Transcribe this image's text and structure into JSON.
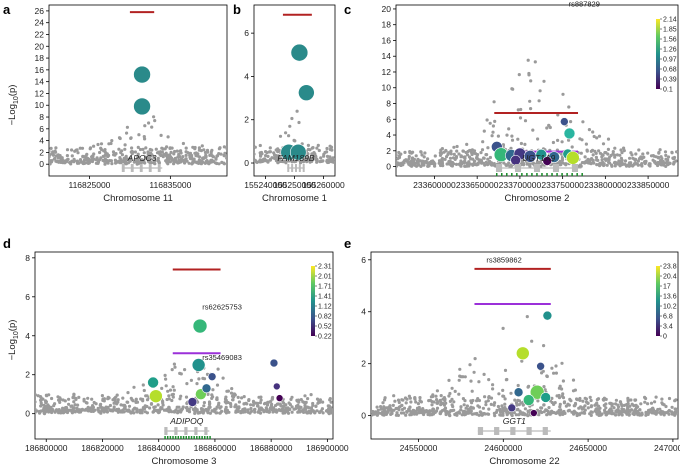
{
  "figure": {
    "ylabel_text": "−Log",
    "ylabel_sub": "10",
    "ylabel_tail": "(p)"
  },
  "chart_data": [
    {
      "type": "scatter",
      "panel": "a",
      "xlabel": "Chromosome 11",
      "xlim": [
        116820000,
        116842000
      ],
      "ylim": [
        -2,
        27
      ],
      "xticks": [
        116825000,
        116835000
      ],
      "xtick_labels": [
        "116825000",
        "116835000"
      ],
      "yticks": [
        0,
        2,
        4,
        6,
        8,
        10,
        12,
        14,
        16,
        18,
        20,
        22,
        24,
        26
      ],
      "ytick_labels": [
        "0",
        "2",
        "4",
        "6",
        "8",
        "10",
        "12",
        "14",
        "16",
        "18",
        "20",
        "22",
        "24",
        "26"
      ],
      "threshold_lines": [
        {
          "y": 25.8,
          "x0": 116830000,
          "x1": 116833000,
          "color": "#b22222"
        }
      ],
      "highlighted_variants": [
        {
          "x": 116831500,
          "y": 15.2,
          "size": 15,
          "color": "#2a8a8a"
        },
        {
          "x": 116831500,
          "y": 9.8,
          "size": 15,
          "color": "#2a8a8a"
        }
      ],
      "colorbar": null,
      "genes": [
        {
          "name": "APOC3",
          "start": 116829000,
          "end": 116834000
        }
      ],
      "annotations": []
    },
    {
      "type": "scatter",
      "panel": "b",
      "xlabel": "Chromosome 1",
      "xlim": [
        155236000,
        155264000
      ],
      "ylim": [
        -0.6,
        7.3
      ],
      "xticks": [
        155240000,
        155250000,
        155260000
      ],
      "xtick_labels": [
        "155240000",
        "155250000",
        "155260000"
      ],
      "yticks": [
        0,
        2,
        4,
        6
      ],
      "ytick_labels": [
        "0",
        "2",
        "4",
        "6"
      ],
      "threshold_lines": [
        {
          "y": 6.85,
          "x0": 155246000,
          "x1": 155256000,
          "color": "#b22222"
        }
      ],
      "highlighted_variants": [
        {
          "x": 155251700,
          "y": 5.1,
          "size": 15,
          "color": "#2a8a8a"
        },
        {
          "x": 155254100,
          "y": 3.25,
          "size": 14,
          "color": "#2a8a8a"
        },
        {
          "x": 155248000,
          "y": 0.5,
          "size": 14,
          "color": "#2a8a8a"
        },
        {
          "x": 155251300,
          "y": 0.5,
          "size": 14,
          "color": "#2a8a8a"
        }
      ],
      "colorbar": null,
      "genes": [
        {
          "name": "FAM189B",
          "start": 155247500,
          "end": 155253500
        }
      ],
      "annotations": []
    },
    {
      "type": "scatter",
      "panel": "c",
      "xlabel": "Chromosome 2",
      "xlim": [
        233555000,
        233885000
      ],
      "ylim": [
        -1.2,
        20.5
      ],
      "xticks": [
        233600000,
        233650000,
        233700000,
        233750000,
        233800000,
        233850000
      ],
      "xtick_labels": [
        "233600000",
        "233650000",
        "233700000",
        "233750000",
        "233800000",
        "233850000"
      ],
      "yticks": [
        0,
        2,
        4,
        6,
        8,
        10,
        12,
        14,
        16,
        18,
        20
      ],
      "ytick_labels": [
        "0",
        "2",
        "4",
        "6",
        "8",
        "10",
        "12",
        "14",
        "16",
        "18",
        "20"
      ],
      "threshold_lines": [
        {
          "y": 6.8,
          "x0": 233670000,
          "x1": 233768000,
          "color": "#b22222"
        },
        {
          "y": 1.9,
          "x0": 233670000,
          "x1": 233768000,
          "color": "#9b30d9"
        }
      ],
      "highlighted_variants": [
        {
          "x": 233758000,
          "y": 4.2,
          "size": 9,
          "color": "#2ab5a0"
        },
        {
          "x": 233752000,
          "y": 5.7,
          "size": 6,
          "color": "#3b528b"
        },
        {
          "x": 233673000,
          "y": 2.5,
          "size": 9,
          "color": "#3b528b"
        },
        {
          "x": 233678000,
          "y": 1.5,
          "size": 12,
          "color": "#35b779"
        },
        {
          "x": 233690000,
          "y": 1.4,
          "size": 10,
          "color": "#31688e"
        },
        {
          "x": 233700000,
          "y": 1.6,
          "size": 10,
          "color": "#443983"
        },
        {
          "x": 233712000,
          "y": 1.3,
          "size": 10,
          "color": "#3b528b"
        },
        {
          "x": 233725000,
          "y": 1.5,
          "size": 9,
          "color": "#21918c"
        },
        {
          "x": 233740000,
          "y": 1.2,
          "size": 9,
          "color": "#31688e"
        },
        {
          "x": 233756000,
          "y": 1.6,
          "size": 8,
          "color": "#1f9e89"
        },
        {
          "x": 233762000,
          "y": 1.1,
          "size": 11,
          "color": "#b5de2b"
        },
        {
          "x": 233695000,
          "y": 0.8,
          "size": 8,
          "color": "#46327e"
        },
        {
          "x": 233732000,
          "y": 0.7,
          "size": 7,
          "color": "#440154"
        }
      ],
      "colorbar": {
        "min": 0.1,
        "max": 2.14,
        "labels": [
          "2.14",
          "1.85",
          "1.56",
          "1.26",
          "0.97",
          "0.68",
          "0.39",
          "0.1"
        ]
      },
      "genes": [
        {
          "name": "UGT1A9",
          "start": 233672000,
          "end": 233772000
        }
      ],
      "annotations": [
        {
          "text": "rs887829",
          "x": 233757000,
          "y": 20.3
        }
      ]
    },
    {
      "type": "scatter",
      "panel": "d",
      "xlabel": "Chromosome 3",
      "xlim": [
        186796000,
        186902000
      ],
      "ylim": [
        -1.3,
        8.3
      ],
      "xticks": [
        186800000,
        186820000,
        186840000,
        186860000,
        186880000,
        186900000
      ],
      "xtick_labels": [
        "186800000",
        "186820000",
        "186840000",
        "186860000",
        "186880000",
        "186900000"
      ],
      "yticks": [
        0,
        2,
        4,
        6,
        8
      ],
      "ytick_labels": [
        "0",
        "2",
        "4",
        "6",
        "8"
      ],
      "threshold_lines": [
        {
          "y": 7.4,
          "x0": 186845000,
          "x1": 186862000,
          "color": "#b22222"
        },
        {
          "y": 3.1,
          "x0": 186845000,
          "x1": 186862000,
          "color": "#9b30d9"
        }
      ],
      "highlighted_variants": [
        {
          "x": 186854700,
          "y": 4.5,
          "size": 12,
          "color": "#35b779"
        },
        {
          "x": 186854200,
          "y": 2.5,
          "size": 11,
          "color": "#21918c"
        },
        {
          "x": 186838000,
          "y": 1.6,
          "size": 9,
          "color": "#1f9e89"
        },
        {
          "x": 186839000,
          "y": 0.9,
          "size": 11,
          "color": "#b5de2b"
        },
        {
          "x": 186855000,
          "y": 1.0,
          "size": 9,
          "color": "#6ece58"
        },
        {
          "x": 186857000,
          "y": 1.3,
          "size": 7,
          "color": "#31688e"
        },
        {
          "x": 186859000,
          "y": 1.9,
          "size": 6,
          "color": "#3b528b"
        },
        {
          "x": 186852000,
          "y": 0.6,
          "size": 7,
          "color": "#443983"
        },
        {
          "x": 186881000,
          "y": 2.6,
          "size": 6,
          "color": "#3b528b"
        },
        {
          "x": 186882000,
          "y": 1.4,
          "size": 5,
          "color": "#46327e"
        },
        {
          "x": 186883000,
          "y": 0.8,
          "size": 5,
          "color": "#440154"
        }
      ],
      "colorbar": {
        "min": 0.22,
        "max": 2.31,
        "labels": [
          "2.31",
          "2.01",
          "1.71",
          "1.41",
          "1.12",
          "0.82",
          "0.52",
          "0.22"
        ]
      },
      "genes": [
        {
          "name": "ADIPOQ",
          "start": 186842000,
          "end": 186858000
        }
      ],
      "annotations": [
        {
          "text": "rs62625753",
          "x": 186855500,
          "y": 5.35
        },
        {
          "text": "rs35469083",
          "x": 186855500,
          "y": 2.75
        }
      ]
    },
    {
      "type": "scatter",
      "panel": "e",
      "xlabel": "Chromosome 22",
      "xlim": [
        24522000,
        24703000
      ],
      "ylim": [
        -0.9,
        6.3
      ],
      "xticks": [
        24550000,
        24600000,
        24650000,
        24700000
      ],
      "xtick_labels": [
        "24550000",
        "24600000",
        "24650000",
        "24700000"
      ],
      "yticks": [
        0,
        2,
        4,
        6
      ],
      "ytick_labels": [
        "0",
        "2",
        "4",
        "6"
      ],
      "threshold_lines": [
        {
          "y": 5.65,
          "x0": 24583000,
          "x1": 24628000,
          "color": "#b22222"
        },
        {
          "y": 4.3,
          "x0": 24583000,
          "x1": 24628000,
          "color": "#9b30d9"
        }
      ],
      "highlighted_variants": [
        {
          "x": 24626000,
          "y": 3.85,
          "size": 7,
          "color": "#21918c"
        },
        {
          "x": 24611500,
          "y": 2.4,
          "size": 11,
          "color": "#b5de2b"
        },
        {
          "x": 24620000,
          "y": 0.9,
          "size": 12,
          "color": "#6ece58"
        },
        {
          "x": 24615000,
          "y": 0.6,
          "size": 9,
          "color": "#35b779"
        },
        {
          "x": 24625000,
          "y": 0.7,
          "size": 8,
          "color": "#1f9e89"
        },
        {
          "x": 24609000,
          "y": 0.9,
          "size": 7,
          "color": "#31688e"
        },
        {
          "x": 24622000,
          "y": 1.9,
          "size": 6,
          "color": "#3b528b"
        },
        {
          "x": 24605000,
          "y": 0.3,
          "size": 6,
          "color": "#443983"
        },
        {
          "x": 24618000,
          "y": 0.1,
          "size": 5,
          "color": "#440154"
        }
      ],
      "colorbar": {
        "min": 0,
        "max": 23.8,
        "labels": [
          "23.8",
          "20.4",
          "17",
          "13.6",
          "10.2",
          "6.8",
          "3.4",
          "0"
        ]
      },
      "genes": [
        {
          "name": "GGT1",
          "start": 24585000,
          "end": 24628000
        }
      ],
      "annotations": [
        {
          "text": "rs3859862",
          "x": 24590000,
          "y": 5.9
        }
      ]
    }
  ]
}
